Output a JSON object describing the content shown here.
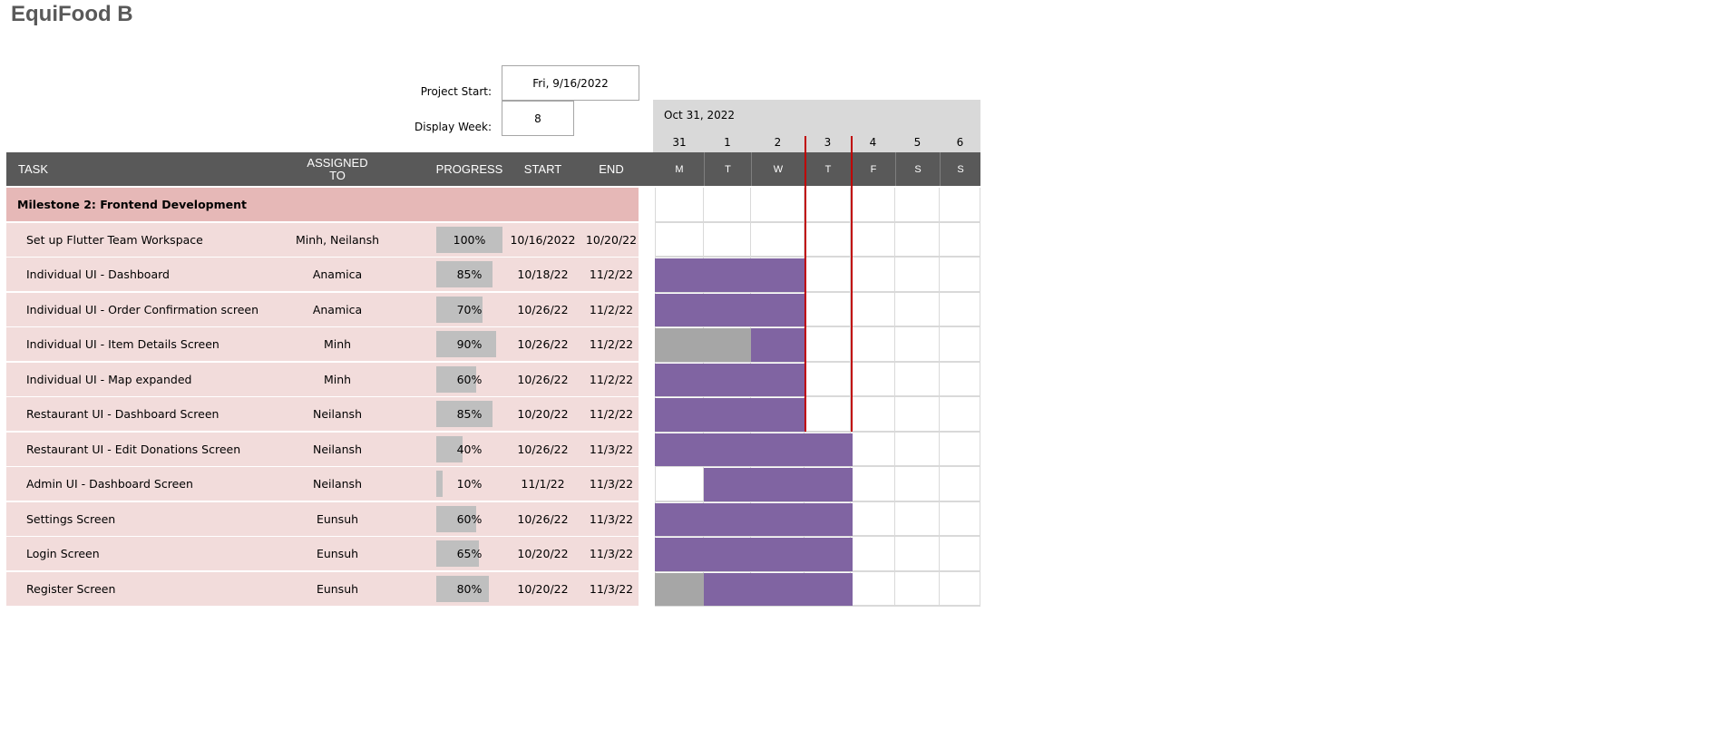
{
  "title": "EquiFood B",
  "project_start_label": "Project Start:",
  "project_start_value": "Fri, 9/16/2022",
  "display_week_label": "Display Week:",
  "display_week_value": "8",
  "header": {
    "task": "TASK",
    "assigned_to": "ASSIGNED TO",
    "progress": "PROGRESS",
    "start": "START",
    "end": "END"
  },
  "timeline": {
    "month_label": "Oct 31, 2022",
    "days": [
      {
        "num": "31",
        "letter": "M"
      },
      {
        "num": "1",
        "letter": "T"
      },
      {
        "num": "2",
        "letter": "W"
      },
      {
        "num": "3",
        "letter": "T"
      },
      {
        "num": "4",
        "letter": "F"
      },
      {
        "num": "5",
        "letter": "S"
      },
      {
        "num": "6",
        "letter": "S"
      }
    ]
  },
  "milestone": "Milestone 2: Frontend Development",
  "tasks": [
    {
      "name": "Set up Flutter Team Workspace",
      "assigned": "Minh, Neilansh",
      "progress": "100%",
      "progress_value": 100,
      "start": "10/16/2022",
      "end": "10/20/22",
      "bar_start_day": 0,
      "bar_end_day": 0,
      "done_days": 0
    },
    {
      "name": "Individual UI - Dashboard",
      "assigned": "Anamica",
      "progress": "85%",
      "progress_value": 85,
      "start": "10/18/22",
      "end": "11/2/22",
      "bar_start_day": 0,
      "bar_end_day": 3,
      "done_days": 0
    },
    {
      "name": "Individual UI - Order Confirmation screen",
      "assigned": "Anamica",
      "progress": "70%",
      "progress_value": 70,
      "start": "10/26/22",
      "end": "11/2/22",
      "bar_start_day": 0,
      "bar_end_day": 3,
      "done_days": 0
    },
    {
      "name": "Individual UI - Item Details Screen",
      "assigned": "Minh",
      "progress": "90%",
      "progress_value": 90,
      "start": "10/26/22",
      "end": "11/2/22",
      "bar_start_day": 0,
      "bar_end_day": 3,
      "done_days": 2
    },
    {
      "name": "Individual UI - Map expanded",
      "assigned": "Minh",
      "progress": "60%",
      "progress_value": 60,
      "start": "10/26/22",
      "end": "11/2/22",
      "bar_start_day": 0,
      "bar_end_day": 3,
      "done_days": 0
    },
    {
      "name": "Restaurant UI - Dashboard Screen",
      "assigned": "Neilansh",
      "progress": "85%",
      "progress_value": 85,
      "start": "10/20/22",
      "end": "11/2/22",
      "bar_start_day": 0,
      "bar_end_day": 3,
      "done_days": 0
    },
    {
      "name": "Restaurant UI - Edit Donations Screen",
      "assigned": "Neilansh",
      "progress": "40%",
      "progress_value": 40,
      "start": "10/26/22",
      "end": "11/3/22",
      "bar_start_day": 0,
      "bar_end_day": 4,
      "done_days": 0
    },
    {
      "name": "Admin UI - Dashboard Screen",
      "assigned": "Neilansh",
      "progress": "10%",
      "progress_value": 10,
      "start": "11/1/22",
      "end": "11/3/22",
      "bar_start_day": 1,
      "bar_end_day": 4,
      "done_days": 0
    },
    {
      "name": "Settings Screen",
      "assigned": "Eunsuh",
      "progress": "60%",
      "progress_value": 60,
      "start": "10/26/22",
      "end": "11/3/22",
      "bar_start_day": 0,
      "bar_end_day": 4,
      "done_days": 0
    },
    {
      "name": "Login Screen",
      "assigned": "Eunsuh",
      "progress": "65%",
      "progress_value": 65,
      "start": "10/20/22",
      "end": "11/3/22",
      "bar_start_day": 0,
      "bar_end_day": 4,
      "done_days": 0
    },
    {
      "name": "Register Screen",
      "assigned": "Eunsuh",
      "progress": "80%",
      "progress_value": 80,
      "start": "10/20/22",
      "end": "11/3/22",
      "bar_start_day": 0,
      "bar_end_day": 4,
      "done_days": 1
    }
  ],
  "colors": {
    "header_bg": "#595959",
    "milestone_bg": "#e6b8b7",
    "task_bg": "#f2dcdb",
    "bar": "#8064a2",
    "bar_done": "#a6a6a6",
    "progress_fill": "#bfbfbf",
    "today_line": "#c00000"
  }
}
